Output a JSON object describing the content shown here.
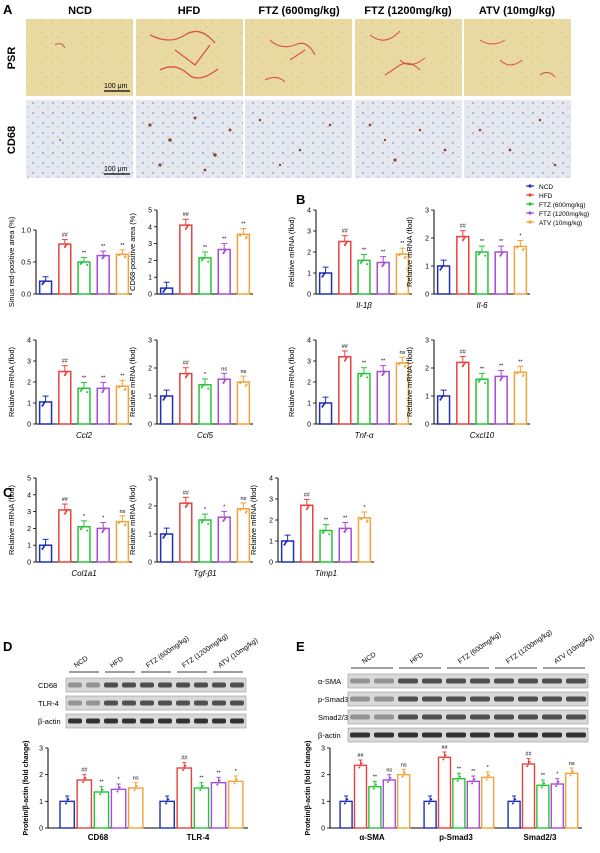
{
  "panel_letters": [
    "A",
    "B",
    "C",
    "D",
    "E"
  ],
  "group_headers": [
    "NCD",
    "HFD",
    "FTZ (600mg/kg)",
    "FTZ (1200mg/kg)",
    "ATV (10mg/kg)"
  ],
  "row_labels": [
    "PSR",
    "CD68"
  ],
  "scale_bar": "100 μm",
  "legend": [
    "NCD",
    "HFD",
    "FTZ (600mg/kg)",
    "FTZ (1200mg/kg)",
    "ATV (10mg/kg)"
  ],
  "colors": [
    "#1f2fb8",
    "#e8423d",
    "#27c43a",
    "#a64dd6",
    "#f2a23a"
  ],
  "chart_data": [
    {
      "type": "bar",
      "panel": "A",
      "ylabel": "Sinus red-positive area (%)",
      "xlabel": "",
      "ylim": [
        0,
        1.0
      ],
      "yticks": [
        "0.0",
        "0.5",
        "1.0"
      ],
      "values": [
        0.2,
        0.78,
        0.5,
        0.6,
        0.62
      ],
      "marks": [
        "",
        "##",
        "**",
        "**",
        "**"
      ]
    },
    {
      "type": "bar",
      "panel": "A",
      "ylabel": "CD68-positive area (%)",
      "xlabel": "",
      "ylim": [
        0,
        5
      ],
      "yticks": [
        "0",
        "1",
        "2",
        "3",
        "4",
        "5"
      ],
      "values": [
        0.35,
        4.1,
        2.15,
        2.65,
        3.55
      ],
      "marks": [
        "",
        "##",
        "**",
        "**",
        "**"
      ]
    },
    {
      "type": "bar",
      "panel": "B",
      "ylabel": "Relative mRNA (flod)",
      "xlabel": "Il-1β",
      "ylim": [
        0,
        4
      ],
      "yticks": [
        "0",
        "1",
        "2",
        "3",
        "4"
      ],
      "values": [
        1.0,
        2.5,
        1.6,
        1.5,
        1.9
      ],
      "marks": [
        "",
        "##",
        "**",
        "**",
        "**"
      ]
    },
    {
      "type": "bar",
      "panel": "B",
      "ylabel": "Relative mRNA (flod)",
      "xlabel": "Il-6",
      "ylim": [
        0,
        3
      ],
      "yticks": [
        "0",
        "1",
        "2",
        "3"
      ],
      "values": [
        1.0,
        2.05,
        1.5,
        1.5,
        1.7
      ],
      "marks": [
        "",
        "##",
        "**",
        "**",
        "*"
      ]
    },
    {
      "type": "bar",
      "panel": "B",
      "ylabel": "Relative mRNA (flod)",
      "xlabel": "Ccl2",
      "ylim": [
        0,
        4
      ],
      "yticks": [
        "0",
        "1",
        "2",
        "3",
        "4"
      ],
      "values": [
        1.05,
        2.5,
        1.7,
        1.7,
        1.8
      ],
      "marks": [
        "",
        "##",
        "**",
        "**",
        "**"
      ]
    },
    {
      "type": "bar",
      "panel": "B",
      "ylabel": "Relative mRNA (flod)",
      "xlabel": "Ccl5",
      "ylim": [
        0,
        3
      ],
      "yticks": [
        "0",
        "1",
        "2",
        "3"
      ],
      "values": [
        1.0,
        1.8,
        1.4,
        1.6,
        1.5
      ],
      "marks": [
        "",
        "##",
        "*",
        "ns",
        "ns"
      ]
    },
    {
      "type": "bar",
      "panel": "B",
      "ylabel": "Relative mRNA (flod)",
      "xlabel": "Tnf-α",
      "ylim": [
        0,
        4
      ],
      "yticks": [
        "0",
        "1",
        "2",
        "3",
        "4"
      ],
      "values": [
        1.0,
        3.2,
        2.4,
        2.5,
        2.9
      ],
      "marks": [
        "",
        "##",
        "**",
        "**",
        "ns"
      ]
    },
    {
      "type": "bar",
      "panel": "B",
      "ylabel": "Relative mRNA (flod)",
      "xlabel": "Cxcl10",
      "ylim": [
        0,
        3
      ],
      "yticks": [
        "0",
        "1",
        "2",
        "3"
      ],
      "values": [
        1.0,
        2.2,
        1.6,
        1.7,
        1.85
      ],
      "marks": [
        "",
        "##",
        "**",
        "**",
        "**"
      ]
    },
    {
      "type": "bar",
      "panel": "C",
      "ylabel": "Relative mRNA (flod)",
      "xlabel": "Col1a1",
      "ylim": [
        0,
        5
      ],
      "yticks": [
        "0",
        "1",
        "2",
        "3",
        "4",
        "5"
      ],
      "values": [
        1.0,
        3.1,
        2.1,
        2.0,
        2.4
      ],
      "marks": [
        "",
        "##",
        "*",
        "*",
        "ns"
      ]
    },
    {
      "type": "bar",
      "panel": "C",
      "ylabel": "Relative mRNA (flod)",
      "xlabel": "Tgf-β1",
      "ylim": [
        0,
        3
      ],
      "yticks": [
        "0",
        "1",
        "2",
        "3"
      ],
      "values": [
        1.0,
        2.1,
        1.5,
        1.6,
        1.9
      ],
      "marks": [
        "",
        "##",
        "*",
        "*",
        "ns"
      ]
    },
    {
      "type": "bar",
      "panel": "C",
      "ylabel": "Relative mRNA (flod)",
      "xlabel": "Timp1",
      "ylim": [
        0,
        4
      ],
      "yticks": [
        "0",
        "1",
        "2",
        "3",
        "4"
      ],
      "values": [
        1.0,
        2.7,
        1.5,
        1.6,
        2.1
      ],
      "marks": [
        "",
        "##",
        "**",
        "**",
        "*"
      ]
    },
    {
      "type": "bar",
      "panel": "D",
      "ylabel": "Protein/β-actin (fold change)",
      "ylim": [
        0,
        3
      ],
      "yticks": [
        "0",
        "1",
        "2",
        "3"
      ],
      "categories": [
        "CD68",
        "TLR-4"
      ],
      "series": [
        {
          "values": [
            1.0,
            1.0
          ]
        },
        {
          "values": [
            1.8,
            2.25
          ]
        },
        {
          "values": [
            1.35,
            1.5
          ]
        },
        {
          "values": [
            1.45,
            1.7
          ]
        },
        {
          "values": [
            1.5,
            1.75
          ]
        }
      ],
      "marks": [
        [
          "",
          "##",
          "**",
          "*",
          "ns"
        ],
        [
          "",
          "##",
          "**",
          "**",
          "*"
        ]
      ]
    },
    {
      "type": "bar",
      "panel": "E",
      "ylabel": "Protein/β-actin (fold change)",
      "ylim": [
        0,
        3
      ],
      "yticks": [
        "0",
        "1",
        "2",
        "3"
      ],
      "categories": [
        "α-SMA",
        "p-Smad3",
        "Smad2/3"
      ],
      "series": [
        {
          "values": [
            1.0,
            1.0,
            1.0
          ]
        },
        {
          "values": [
            2.35,
            2.65,
            2.4
          ]
        },
        {
          "values": [
            1.55,
            1.85,
            1.6
          ]
        },
        {
          "values": [
            1.8,
            1.75,
            1.65
          ]
        },
        {
          "values": [
            2.0,
            1.9,
            2.05
          ]
        }
      ],
      "marks": [
        [
          "",
          "##",
          "**",
          "ns",
          "ns"
        ],
        [
          "",
          "##",
          "**",
          "**",
          "*"
        ],
        [
          "",
          "##",
          "**",
          "*",
          "ns"
        ]
      ]
    }
  ],
  "blot_D": {
    "lanes": [
      "NCD",
      "HFD",
      "FTZ (600mg/kg)",
      "FTZ (1200mg/kg)",
      "ATV (10mg/kg)"
    ],
    "rows": [
      "CD68",
      "TLR-4",
      "β-actin"
    ]
  },
  "blot_E": {
    "lanes": [
      "NCD",
      "HFD",
      "FTZ (600mg/kg)",
      "FTZ (1200mg/kg)",
      "ATV (10mg/kg)"
    ],
    "rows": [
      "α-SMA",
      "p-Smad3",
      "Smad2/3",
      "β-actin"
    ]
  }
}
